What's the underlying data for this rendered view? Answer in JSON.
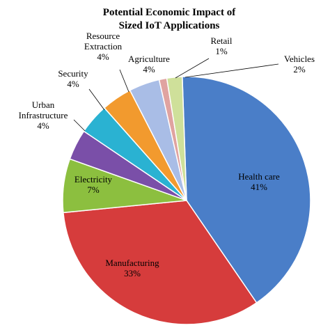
{
  "chart_data": {
    "type": "pie",
    "title": [
      "Potential Economic Impact of",
      "Sized IoT Applications"
    ],
    "slices": [
      {
        "name": "Health care",
        "label_lines": [
          "Health care"
        ],
        "value": 41,
        "value_text": "41%",
        "color": "#4a7ec8"
      },
      {
        "name": "Manufacturing",
        "label_lines": [
          "Manufacturing"
        ],
        "value": 33,
        "value_text": "33%",
        "color": "#d63c3c"
      },
      {
        "name": "Electricity",
        "label_lines": [
          "Electricity"
        ],
        "value": 7,
        "value_text": "7%",
        "color": "#8cbf3f"
      },
      {
        "name": "Urban Infrastructure",
        "label_lines": [
          "Urban",
          "Infrastructure"
        ],
        "value": 4,
        "value_text": "4%",
        "color": "#7a4fa8"
      },
      {
        "name": "Security",
        "label_lines": [
          "Security"
        ],
        "value": 4,
        "value_text": "4%",
        "color": "#2ab2d2"
      },
      {
        "name": "Resource Extraction",
        "label_lines": [
          "Resource",
          "Extraction"
        ],
        "value": 4,
        "value_text": "4%",
        "color": "#f29a2e"
      },
      {
        "name": "Agriculture",
        "label_lines": [
          "Agriculture"
        ],
        "value": 4,
        "value_text": "4%",
        "color": "#a9bde6"
      },
      {
        "name": "Retail",
        "label_lines": [
          "Retail"
        ],
        "value": 1,
        "value_text": "1%",
        "color": "#e0a3a0"
      },
      {
        "name": "Vehicles",
        "label_lines": [
          "Vehicles"
        ],
        "value": 2,
        "value_text": "2%",
        "color": "#cfe09a"
      }
    ]
  }
}
